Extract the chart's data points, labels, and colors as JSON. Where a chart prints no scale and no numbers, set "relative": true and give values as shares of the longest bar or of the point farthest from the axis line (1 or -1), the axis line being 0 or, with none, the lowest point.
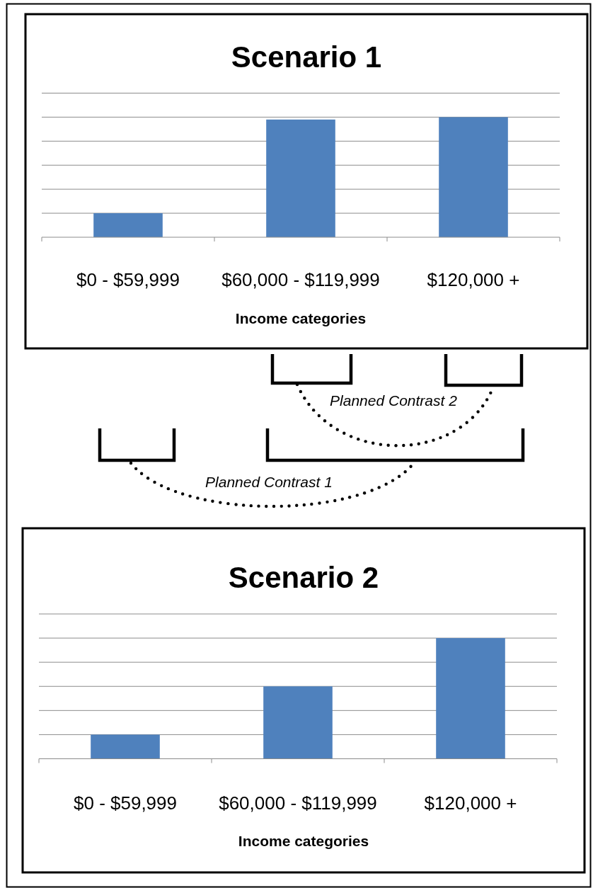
{
  "chart_data": [
    {
      "type": "bar",
      "title": "Scenario 1",
      "categories": [
        "$0 - $59,999",
        "$60,000 - $119,999",
        "$120,000 +"
      ],
      "values": [
        0.2,
        0.98,
        1
      ],
      "color": "#4f81bd",
      "relative": true,
      "xlabel": "Income categories",
      "grid": "y",
      "annotations": [
        "Planned Contrast 2",
        "Planned Contrast 1"
      ]
    },
    {
      "type": "bar",
      "title": "Scenario 2",
      "categories": [
        "$0 - $59,999",
        "$60,000 - $119,999",
        "$120,000 +"
      ],
      "values": [
        0.2,
        0.6,
        1
      ],
      "color": "#4f81bd",
      "relative": true,
      "xlabel": "Income categories",
      "grid": "y"
    }
  ]
}
